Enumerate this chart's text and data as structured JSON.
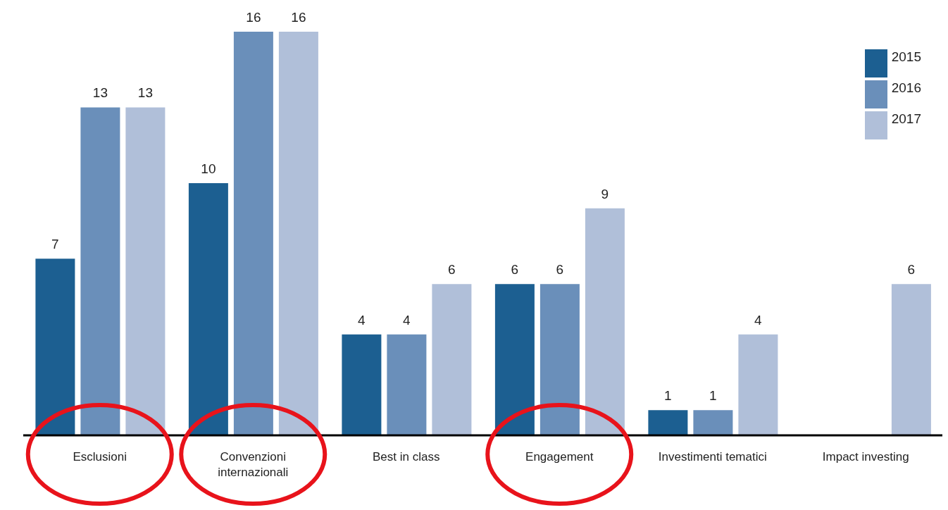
{
  "chart_data": {
    "type": "bar",
    "categories": [
      "Esclusioni",
      "Convenzioni internazionali",
      "Best in class",
      "Engagement",
      "Investimenti tematici",
      "Impact investing"
    ],
    "series": [
      {
        "name": "2015",
        "color": "#1c5f91",
        "values": [
          7,
          10,
          4,
          6,
          1,
          null
        ]
      },
      {
        "name": "2016",
        "color": "#6a8fba",
        "values": [
          13,
          16,
          4,
          6,
          1,
          null
        ]
      },
      {
        "name": "2017",
        "color": "#b0bfd9",
        "values": [
          13,
          16,
          6,
          9,
          4,
          6
        ]
      }
    ],
    "data_labels": true,
    "legend": "top right",
    "grid": false
  }
}
